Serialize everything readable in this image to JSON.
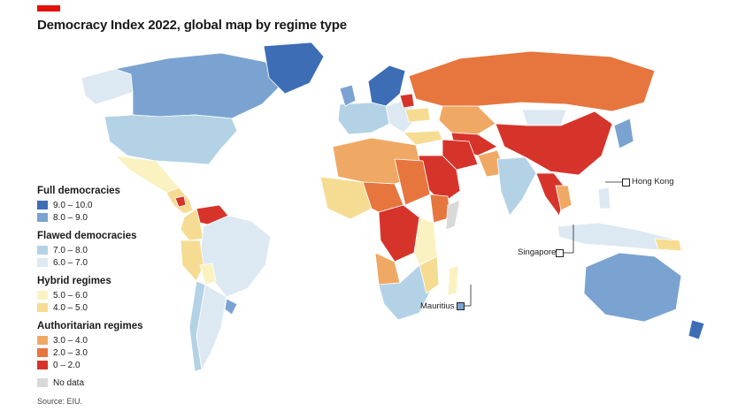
{
  "title": "Democracy Index 2022, global map by regime type",
  "colors": {
    "accent": "#e3120b",
    "full_high": "#3d6db5",
    "full_low": "#7ba3d1",
    "flawed_high": "#b4d2e6",
    "flawed_low": "#dde9f2",
    "hybrid_high": "#fbf2c2",
    "hybrid_low": "#f6dc93",
    "auth_high": "#f0a964",
    "auth_mid": "#e6763e",
    "auth_low": "#d6342b",
    "no_data": "#d9d9d9"
  },
  "legend": {
    "groups": [
      {
        "title": "Full democracies",
        "items": [
          {
            "label": "9.0 – 10.0",
            "color": "#3d6db5"
          },
          {
            "label": "8.0 – 9.0",
            "color": "#7ba3d1"
          }
        ]
      },
      {
        "title": "Flawed democracies",
        "items": [
          {
            "label": "7.0 – 8.0",
            "color": "#b4d2e6"
          },
          {
            "label": "6.0 – 7.0",
            "color": "#dde9f2"
          }
        ]
      },
      {
        "title": "Hybrid regimes",
        "items": [
          {
            "label": "5.0 – 6.0",
            "color": "#fbf2c2"
          },
          {
            "label": "4.0 – 5.0",
            "color": "#f6dc93"
          }
        ]
      },
      {
        "title": "Authoritarian regimes",
        "items": [
          {
            "label": "3.0 – 4.0",
            "color": "#f0a964"
          },
          {
            "label": "2.0 – 3.0",
            "color": "#e6763e"
          },
          {
            "label": "0 – 2.0",
            "color": "#d6342b"
          }
        ]
      }
    ],
    "no_data": {
      "label": "No data",
      "color": "#d9d9d9"
    }
  },
  "callouts": {
    "hong_kong": "Hong Kong",
    "singapore": "Singapore",
    "mauritius": "Mauritius"
  },
  "source": "Source: EIU."
}
